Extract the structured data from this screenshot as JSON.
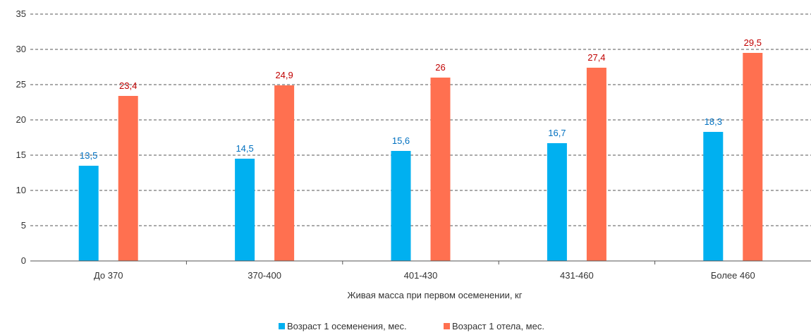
{
  "chart_data": {
    "type": "bar",
    "categories": [
      "До 370",
      "370-400",
      "401-430",
      "431-460",
      "Более 460"
    ],
    "series": [
      {
        "name": "Возраст 1 осеменения, мес.",
        "color": "#00b0f0",
        "label_color": "#0070c0",
        "values": [
          13.5,
          14.5,
          15.6,
          16.7,
          18.3
        ],
        "labels": [
          "13,5",
          "14,5",
          "15,6",
          "16,7",
          "18,3"
        ]
      },
      {
        "name": "Возраст 1 отела, мес.",
        "color": "#ff7050",
        "label_color": "#c00000",
        "values": [
          23.4,
          24.9,
          26,
          27.4,
          29.5
        ],
        "labels": [
          "23,4",
          "24,9",
          "26",
          "27,4",
          "29,5"
        ]
      }
    ],
    "xlabel": "Живая масса при первом осеменении, кг",
    "ylabel": "",
    "ylim": [
      0,
      35
    ],
    "yticks": [
      0,
      5,
      10,
      15,
      20,
      25,
      30,
      35
    ],
    "grid": true,
    "legend_position": "bottom"
  }
}
